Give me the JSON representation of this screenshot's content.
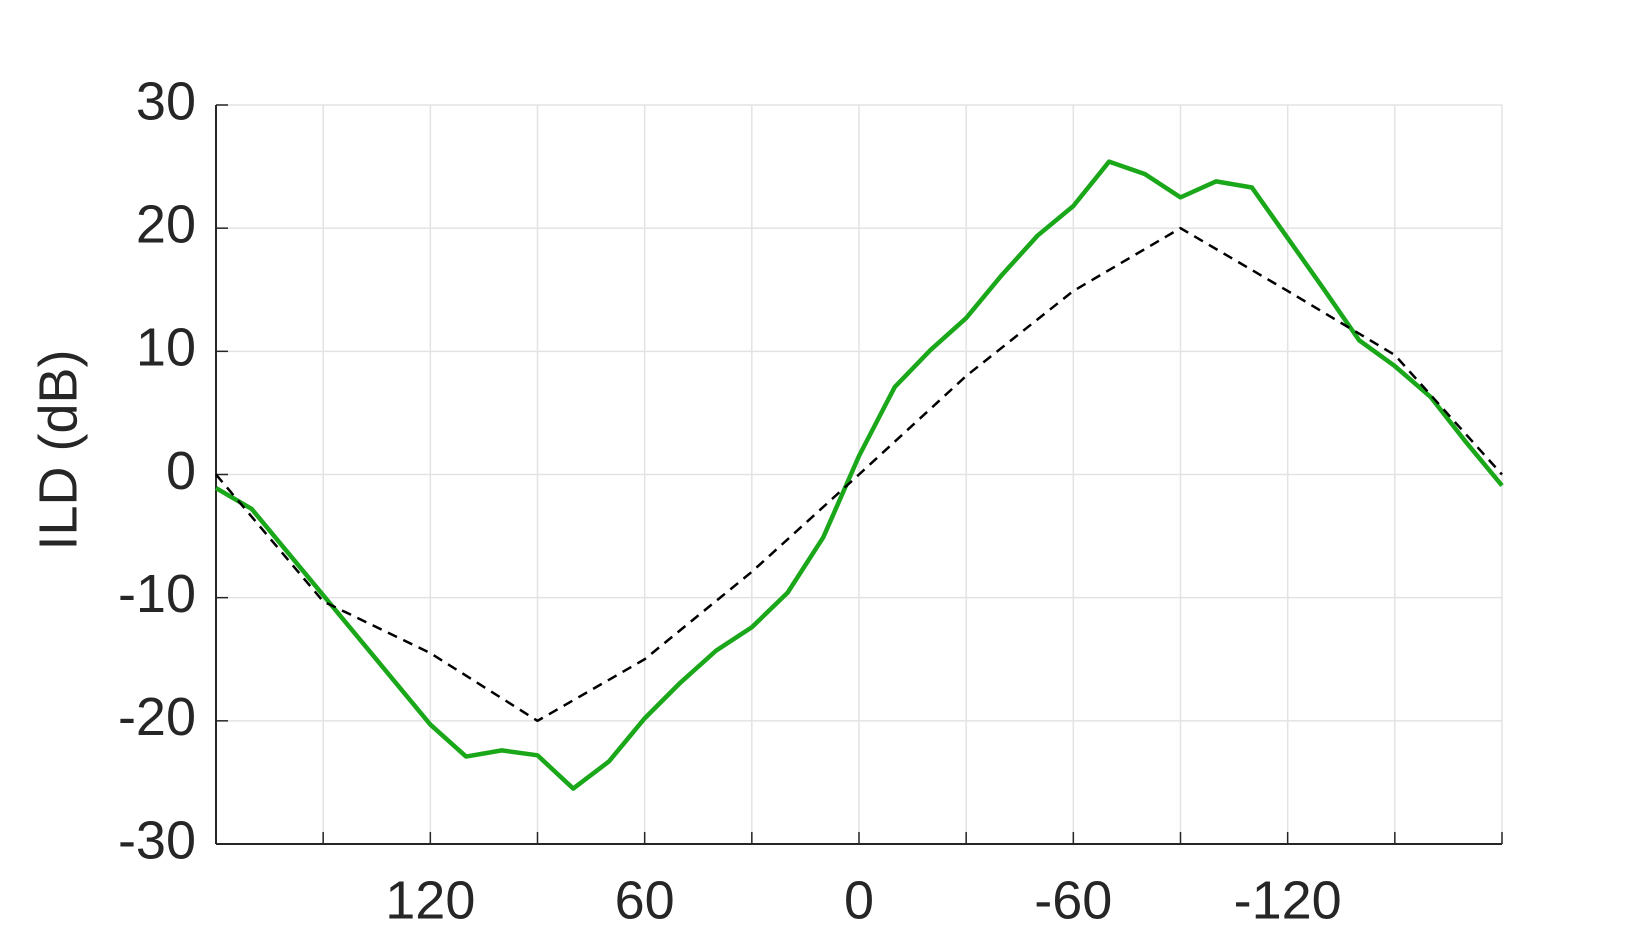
{
  "chart_data": {
    "type": "line",
    "y_label": "ILD (dB)",
    "xlim": [
      180,
      -180
    ],
    "xticks": [
      120,
      60,
      0,
      -60,
      -120
    ],
    "xgrid": [
      180,
      150,
      120,
      90,
      60,
      30,
      0,
      -30,
      -60,
      -90,
      -120,
      -150,
      -180
    ],
    "ylim": [
      -30,
      30
    ],
    "yticks": [
      -30,
      -20,
      -10,
      0,
      10,
      20,
      30
    ],
    "grid": true,
    "series": [
      {
        "color": "#1aa71a",
        "style": "solid",
        "x": [
          180,
          170,
          160,
          150,
          140,
          130,
          120,
          110,
          100,
          90,
          80,
          70,
          60,
          50,
          40,
          30,
          20,
          10,
          0,
          -10,
          -20,
          -30,
          -40,
          -50,
          -60,
          -70,
          -80,
          -90,
          -100,
          -110,
          -120,
          -130,
          -140,
          -150,
          -160,
          -170,
          -180
        ],
        "values": [
          -1.1,
          -2.8,
          -6.3,
          -9.8,
          -13.3,
          -16.8,
          -20.3,
          -22.9,
          -22.4,
          -22.8,
          -25.5,
          -23.3,
          -19.8,
          -16.9,
          -14.3,
          -12.4,
          -9.6,
          -5.1,
          1.5,
          7.1,
          10.1,
          12.7,
          16.2,
          19.4,
          21.8,
          25.4,
          24.4,
          22.5,
          23.8,
          23.3,
          19.2,
          15.1,
          10.9,
          8.8,
          6.3,
          2.6,
          -0.9
        ]
      },
      {
        "color": "#000000",
        "style": "dashed",
        "x": [
          180,
          150,
          120,
          90,
          60,
          30,
          0,
          -30,
          -60,
          -90,
          -120,
          -150,
          -180
        ],
        "values": [
          0,
          -10.3,
          -14.5,
          -20,
          -15,
          -7.9,
          0,
          8,
          14.9,
          20,
          14.9,
          9.7,
          0
        ]
      }
    ]
  }
}
